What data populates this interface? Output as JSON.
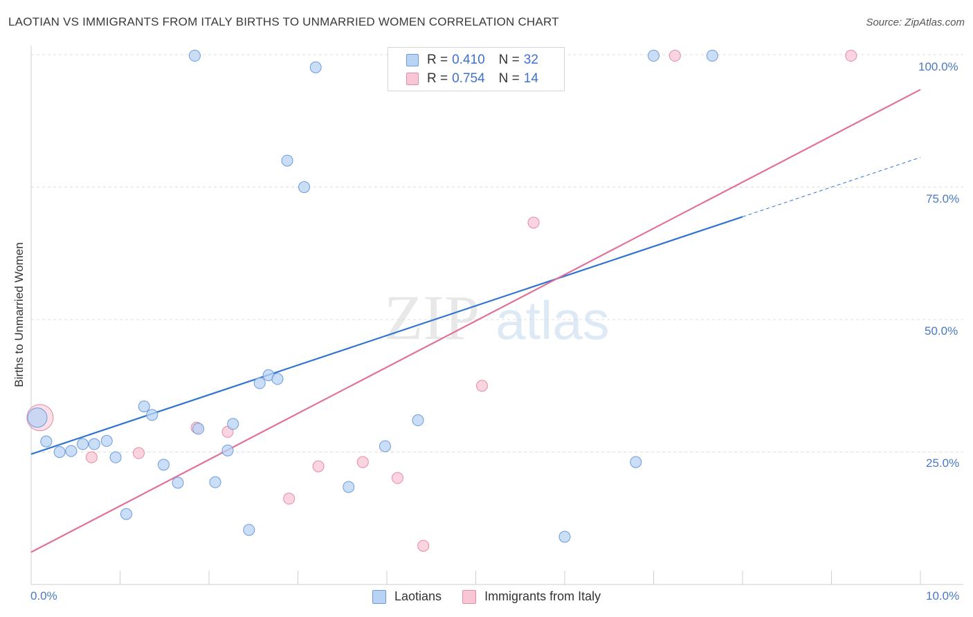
{
  "title": "LAOTIAN VS IMMIGRANTS FROM ITALY BIRTHS TO UNMARRIED WOMEN CORRELATION CHART",
  "source": "Source: ZipAtlas.com",
  "watermark": {
    "zip": "ZIP",
    "atlas": "atlas"
  },
  "colors": {
    "laotian_fill": "#b9d3f5",
    "laotian_stroke": "#6c9ad9",
    "laotian_line": "#2f74d0",
    "italy_fill": "#f8c6d4",
    "italy_stroke": "#e58aa6",
    "italy_line": "#e0709a"
  },
  "legend_top": {
    "rows": [
      {
        "r_label": "R =",
        "r_value": "0.410",
        "n_label": "N =",
        "n_value": "32"
      },
      {
        "r_label": "R =",
        "r_value": "0.754",
        "n_label": "N =",
        "n_value": "14"
      }
    ]
  },
  "legend_bottom": [
    "Laotians",
    "Immigrants from Italy"
  ],
  "chart_data": {
    "type": "scatter",
    "title": "LAOTIAN VS IMMIGRANTS FROM ITALY BIRTHS TO UNMARRIED WOMEN CORRELATION CHART",
    "xlabel": "",
    "ylabel": "Births to Unmarried Women",
    "xlim": [
      0,
      10
    ],
    "ylim": [
      0,
      100
    ],
    "x_tick_labels": [
      "0.0%",
      "10.0%"
    ],
    "y_tick_labels": [
      "100.0%",
      "75.0%",
      "50.0%",
      "25.0%"
    ],
    "y_tick_values": [
      100,
      75,
      50,
      25
    ],
    "series": [
      {
        "name": "Laotians",
        "r": 0.41,
        "n": 32,
        "points": [
          {
            "x": 0.07,
            "y": 31.5,
            "big": true
          },
          {
            "x": 0.17,
            "y": 27
          },
          {
            "x": 0.32,
            "y": 25
          },
          {
            "x": 0.45,
            "y": 25.2
          },
          {
            "x": 0.58,
            "y": 26.5
          },
          {
            "x": 0.71,
            "y": 26.5
          },
          {
            "x": 0.85,
            "y": 27.1
          },
          {
            "x": 0.95,
            "y": 24
          },
          {
            "x": 1.07,
            "y": 13.3
          },
          {
            "x": 1.27,
            "y": 33.6
          },
          {
            "x": 1.36,
            "y": 32
          },
          {
            "x": 1.49,
            "y": 22.6
          },
          {
            "x": 1.65,
            "y": 19.2
          },
          {
            "x": 1.84,
            "y": 99.8
          },
          {
            "x": 1.88,
            "y": 29.4
          },
          {
            "x": 2.07,
            "y": 19.3
          },
          {
            "x": 2.27,
            "y": 30.3
          },
          {
            "x": 2.45,
            "y": 10.3
          },
          {
            "x": 2.57,
            "y": 38
          },
          {
            "x": 2.67,
            "y": 39.5
          },
          {
            "x": 2.77,
            "y": 38.8
          },
          {
            "x": 2.88,
            "y": 80
          },
          {
            "x": 3.07,
            "y": 75
          },
          {
            "x": 3.2,
            "y": 97.6
          },
          {
            "x": 3.57,
            "y": 18.4
          },
          {
            "x": 3.98,
            "y": 26.1
          },
          {
            "x": 4.35,
            "y": 31
          },
          {
            "x": 6.0,
            "y": 9
          },
          {
            "x": 6.8,
            "y": 23.1
          },
          {
            "x": 7.0,
            "y": 99.8
          },
          {
            "x": 7.66,
            "y": 99.8
          },
          {
            "x": 2.21,
            "y": 25.3
          }
        ],
        "trend": {
          "x1": 0,
          "y1": 24.6,
          "x2": 8.0,
          "y2": 69.4,
          "dash_x2": 10.0,
          "dash_y2": 80.6
        }
      },
      {
        "name": "Immigrants from Italy",
        "r": 0.754,
        "n": 14,
        "points": [
          {
            "x": 0.1,
            "y": 31.5,
            "big": true
          },
          {
            "x": 0.68,
            "y": 24
          },
          {
            "x": 1.21,
            "y": 24.8
          },
          {
            "x": 1.86,
            "y": 29.6
          },
          {
            "x": 2.21,
            "y": 28.8
          },
          {
            "x": 2.9,
            "y": 16.2
          },
          {
            "x": 3.23,
            "y": 22.3
          },
          {
            "x": 3.73,
            "y": 23.1
          },
          {
            "x": 4.12,
            "y": 20.1
          },
          {
            "x": 4.41,
            "y": 7.3
          },
          {
            "x": 5.07,
            "y": 37.5
          },
          {
            "x": 5.65,
            "y": 68.3
          },
          {
            "x": 7.24,
            "y": 99.8
          },
          {
            "x": 9.22,
            "y": 99.8
          }
        ],
        "trend": {
          "x1": 0,
          "y1": 6.1,
          "x2": 10.0,
          "y2": 93.4
        }
      }
    ]
  }
}
